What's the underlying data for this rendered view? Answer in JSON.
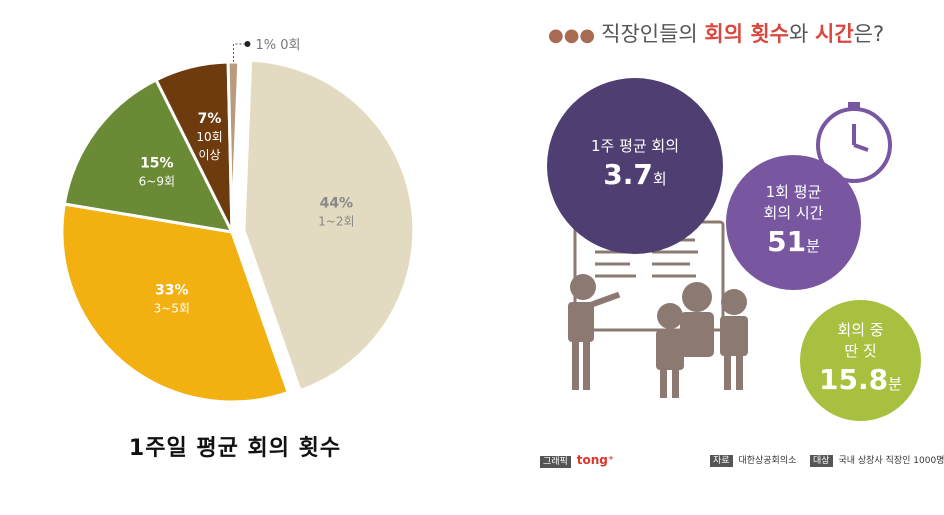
{
  "chart_data": {
    "type": "pie",
    "title": "1주일 평균 회의 횟수",
    "slices": [
      {
        "pct_label": "44%",
        "range_label": "1~2회",
        "value": 44,
        "color": "#e3dbc1"
      },
      {
        "pct_label": "33%",
        "range_label": "3~5회",
        "value": 33,
        "color": "#f3b011"
      },
      {
        "pct_label": "15%",
        "range_label": "6~9회",
        "value": 15,
        "color": "#6b8a36"
      },
      {
        "pct_label": "7%",
        "range_label_line1": "10회",
        "range_label_line2": "이상",
        "value": 7,
        "color": "#6e3b0f"
      },
      {
        "pct_label": "1%",
        "range_label": "0회",
        "value": 1,
        "color": "#b99a7c"
      }
    ]
  },
  "infographic": {
    "title_pre": "직장인들의 ",
    "title_hl1": "회의 횟수",
    "title_mid": "와 ",
    "title_hl2": "시간",
    "title_post": "은?",
    "circles": [
      {
        "label_line1": "1주 평균 회의",
        "value": "3.7",
        "unit": "회",
        "color": "#4e3e72"
      },
      {
        "label_line1": "1회 평균",
        "label_line2": "회의 시간",
        "value": "51",
        "unit": "분",
        "color": "#7957a0"
      },
      {
        "label_line1": "회의 중",
        "label_line2": "딴 짓",
        "value": "15.8",
        "unit": "분",
        "color": "#a8c040"
      }
    ],
    "footer": {
      "graphic_tag": "그래픽",
      "brand": "tong⁺",
      "source_tag": "자료",
      "source": "대한상공회의소",
      "target_tag": "대상",
      "target": "국내 상장사 직장인 1000명"
    }
  }
}
